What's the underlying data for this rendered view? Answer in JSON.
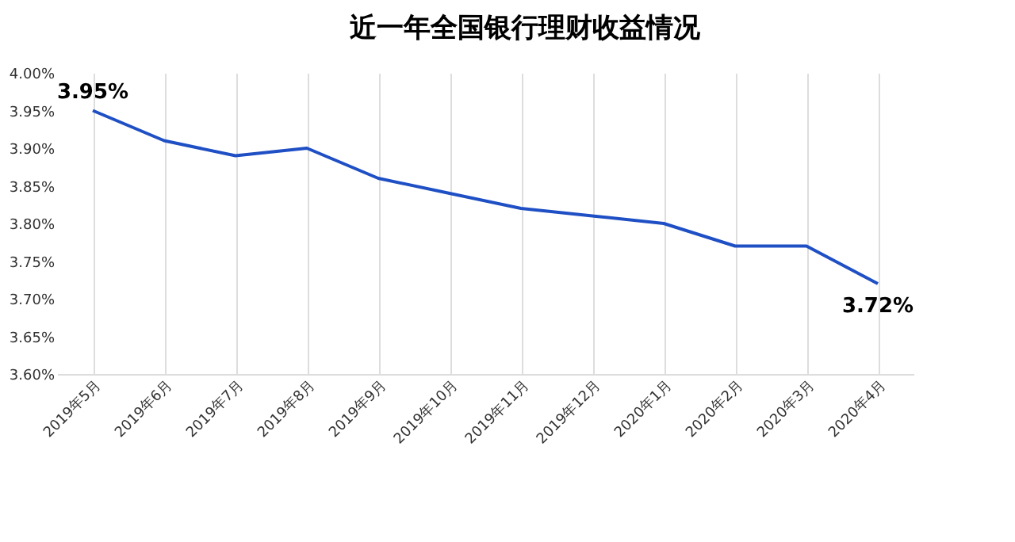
{
  "chart_data": {
    "type": "line",
    "title": "近一年全国银行理财收益情况",
    "categories": [
      "2019年5月",
      "2019年6月",
      "2019年7月",
      "2019年8月",
      "2019年9月",
      "2019年10月",
      "2019年11月",
      "2019年12月",
      "2020年1月",
      "2020年2月",
      "2020年3月",
      "2020年4月"
    ],
    "series": [
      {
        "color": "#1f4fc4",
        "values": [
          3.95,
          3.91,
          3.89,
          3.9,
          3.86,
          3.84,
          3.82,
          3.81,
          3.8,
          3.77,
          3.77,
          3.72
        ],
        "value_labels": [
          "3.95%",
          null,
          null,
          null,
          null,
          null,
          null,
          null,
          null,
          null,
          null,
          "3.72%"
        ]
      }
    ],
    "ylim": [
      3.6,
      4.0
    ],
    "yticks": [
      {
        "value": 3.6,
        "label": "3.60%"
      },
      {
        "value": 3.65,
        "label": "3.65%"
      },
      {
        "value": 3.7,
        "label": "3.70%"
      },
      {
        "value": 3.75,
        "label": "3.75%"
      },
      {
        "value": 3.8,
        "label": "3.80%"
      },
      {
        "value": 3.85,
        "label": "3.85%"
      },
      {
        "value": 3.9,
        "label": "3.90%"
      },
      {
        "value": 3.95,
        "label": "3.95%"
      },
      {
        "value": 4.0,
        "label": "4.00%"
      }
    ],
    "grid": "x",
    "marker": "none",
    "line_style": "solid"
  }
}
